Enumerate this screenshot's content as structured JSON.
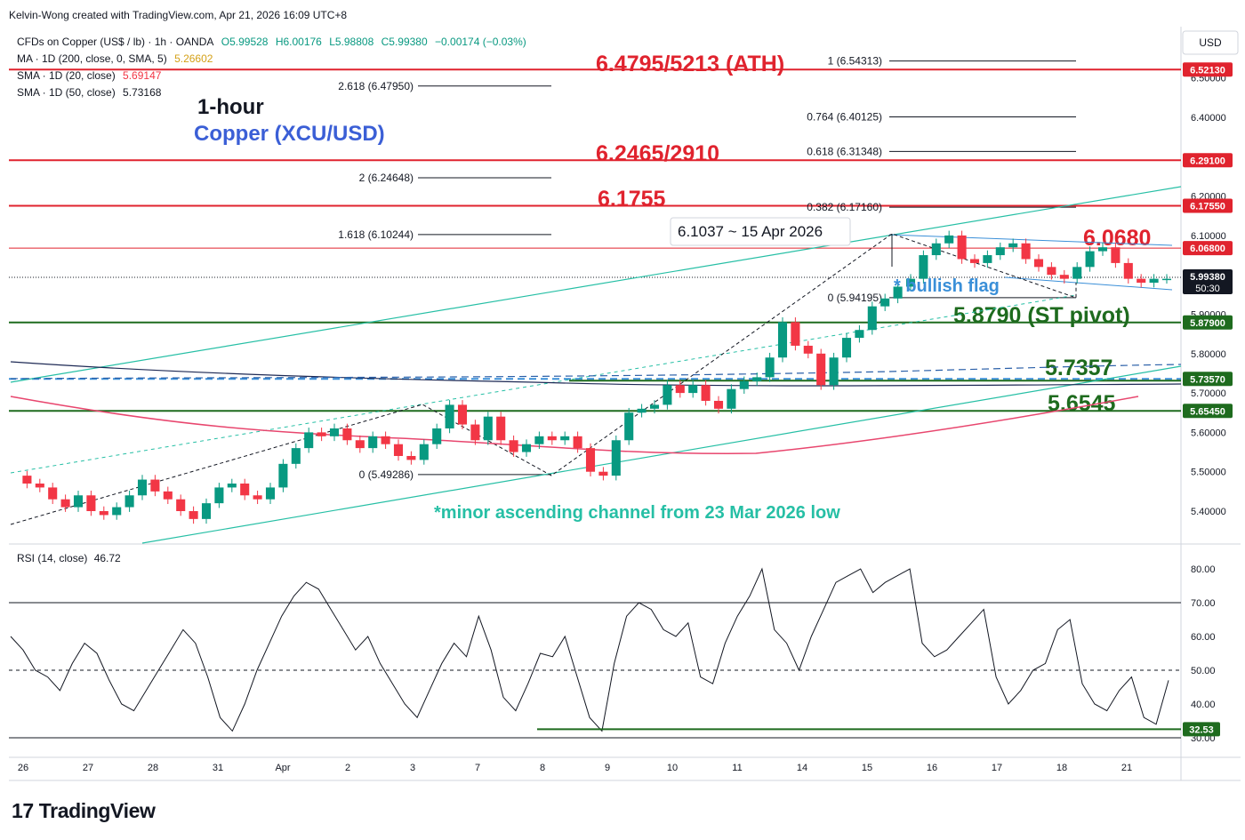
{
  "header": {
    "credit": "Kelvin-Wong created with TradingView.com, Apr 21, 2026 16:09 UTC+8",
    "currency": "USD"
  },
  "legend": {
    "symbol": "CFDs on Copper (US$ / lb) · 1h · OANDA",
    "o": "O5.99528",
    "h": "H6.00176",
    "l": "L5.98808",
    "c": "C5.99380",
    "change": "−0.00174 (−0.03%)",
    "ma_label": "MA · 1D (200, close, 0, SMA, 5)",
    "ma_value": "5.26602",
    "sma20_label": "SMA · 1D (20, close)",
    "sma20_value": "5.69147",
    "sma50_label": "SMA · 1D (50, close)",
    "sma50_value": "5.73168"
  },
  "rsi_legend": {
    "label": "RSI (14, close)",
    "value": "46.72"
  },
  "footer": {
    "brand": "TradingView"
  },
  "colors": {
    "resistance": "#e0232e",
    "support": "#1e6b1e",
    "channel": "#26bfa5",
    "sma200": "#e8466e",
    "sma20": "#2a5fa8",
    "sma50": "#1e2a55",
    "bull": "#089981",
    "bear": "#f23645",
    "text_blue": "#3b5fd6",
    "flag_blue": "#3a8fd8"
  },
  "chart_data": [
    {
      "type": "candlestick",
      "title": "1-hour",
      "subtitle": "Copper (XCU/USD)",
      "y_axis": {
        "range": [
          5.36,
          6.57
        ],
        "ticks": [
          "6.50000",
          "6.40000",
          "6.30000",
          "6.20000",
          "6.10000",
          "6.00000",
          "5.90000",
          "5.80000",
          "5.70000",
          "5.60000",
          "5.50000",
          "5.40000"
        ]
      },
      "x_axis": {
        "ticks": [
          "26",
          "27",
          "28",
          "31",
          "Apr",
          "2",
          "3",
          "7",
          "8",
          "9",
          "10",
          "11",
          "14",
          "15",
          "16",
          "17",
          "18",
          "21"
        ]
      },
      "ohlc_path": [
        5.49,
        5.47,
        5.46,
        5.43,
        5.41,
        5.44,
        5.4,
        5.39,
        5.41,
        5.44,
        5.48,
        5.45,
        5.43,
        5.4,
        5.38,
        5.42,
        5.46,
        5.47,
        5.44,
        5.43,
        5.46,
        5.52,
        5.56,
        5.6,
        5.59,
        5.61,
        5.58,
        5.56,
        5.59,
        5.57,
        5.54,
        5.53,
        5.57,
        5.61,
        5.67,
        5.62,
        5.58,
        5.64,
        5.58,
        5.55,
        5.57,
        5.59,
        5.58,
        5.59,
        5.56,
        5.5,
        5.49,
        5.58,
        5.65,
        5.66,
        5.67,
        5.72,
        5.7,
        5.72,
        5.68,
        5.66,
        5.71,
        5.73,
        5.74,
        5.79,
        5.88,
        5.82,
        5.8,
        5.72,
        5.79,
        5.84,
        5.86,
        5.92,
        5.94,
        5.97,
        5.99,
        6.05,
        6.08,
        6.1,
        6.04,
        6.03,
        6.05,
        6.07,
        6.08,
        6.04,
        6.02,
        6.0,
        5.99,
        6.02,
        6.06,
        6.07,
        6.03,
        5.99,
        5.98,
        5.99,
        5.99
      ],
      "price_levels": [
        {
          "label": "6.4795/5213 (ATH)",
          "value": 6.5213,
          "axis_tag": "6.52130",
          "kind": "resistance"
        },
        {
          "label": "6.2465/2910",
          "value": 6.291,
          "axis_tag": "6.29100",
          "kind": "resistance"
        },
        {
          "label": "6.1755",
          "value": 6.1755,
          "axis_tag": "6.17550",
          "kind": "resistance"
        },
        {
          "label": "6.0680",
          "value": 6.068,
          "axis_tag": "6.06800",
          "kind": "resistance"
        },
        {
          "label": "5.8790 (ST pivot)",
          "value": 5.879,
          "axis_tag": "5.87900",
          "kind": "support"
        },
        {
          "label": "5.7357",
          "value": 5.7357,
          "axis_tag": "5.73570",
          "kind": "support"
        },
        {
          "label": "5.6545",
          "value": 5.6545,
          "axis_tag": "5.65450",
          "kind": "support"
        }
      ],
      "fib_left": [
        {
          "label": "2.618 (6.47950)",
          "value": 6.4795
        },
        {
          "label": "2 (6.24648)",
          "value": 6.24648
        },
        {
          "label": "1.618 (6.10244)",
          "value": 6.10244
        },
        {
          "label": "0 (5.49286)",
          "value": 5.49286
        }
      ],
      "fib_right": [
        {
          "label": "1 (6.54313)",
          "value": 6.54313
        },
        {
          "label": "0.764 (6.40125)",
          "value": 6.40125
        },
        {
          "label": "0.618 (6.31348)",
          "value": 6.31348
        },
        {
          "label": "0.382 (6.17160)",
          "value": 6.1716
        },
        {
          "label": "0 (5.94195)",
          "value": 5.94195
        }
      ],
      "last_price": {
        "value": 5.9938,
        "tag": "5.99380",
        "countdown": "50:30"
      },
      "callout": "6.1037 ~ 15 Apr 2026",
      "annotations": {
        "bullish_flag": "* bullish flag",
        "channel_note": "*minor ascending channel from 23 Mar 2026 low"
      }
    },
    {
      "type": "line",
      "title": "RSI (14, close)",
      "y_axis": {
        "ticks": [
          "80.00",
          "70.00",
          "60.00",
          "50.00",
          "40.00",
          "30.00"
        ],
        "bands": [
          70,
          50,
          30
        ]
      },
      "series": [
        {
          "values": [
            60,
            56,
            50,
            48,
            44,
            52,
            58,
            55,
            47,
            40,
            38,
            44,
            50,
            56,
            62,
            58,
            48,
            36,
            32,
            40,
            50,
            58,
            66,
            72,
            76,
            74,
            68,
            62,
            56,
            60,
            52,
            46,
            40,
            36,
            44,
            52,
            58,
            54,
            66,
            56,
            42,
            38,
            46,
            55,
            54,
            60,
            48,
            36,
            32,
            52,
            66,
            70,
            68,
            62,
            60,
            64,
            48,
            46,
            58,
            66,
            72,
            80,
            62,
            58,
            50,
            60,
            68,
            76,
            78,
            80,
            73,
            76,
            78,
            80,
            58,
            54,
            56,
            60,
            64,
            68,
            48,
            40,
            44,
            50,
            52,
            62,
            65,
            46,
            40,
            38,
            44,
            48,
            36,
            34,
            47
          ]
        }
      ],
      "support_tag": "32.53"
    }
  ]
}
